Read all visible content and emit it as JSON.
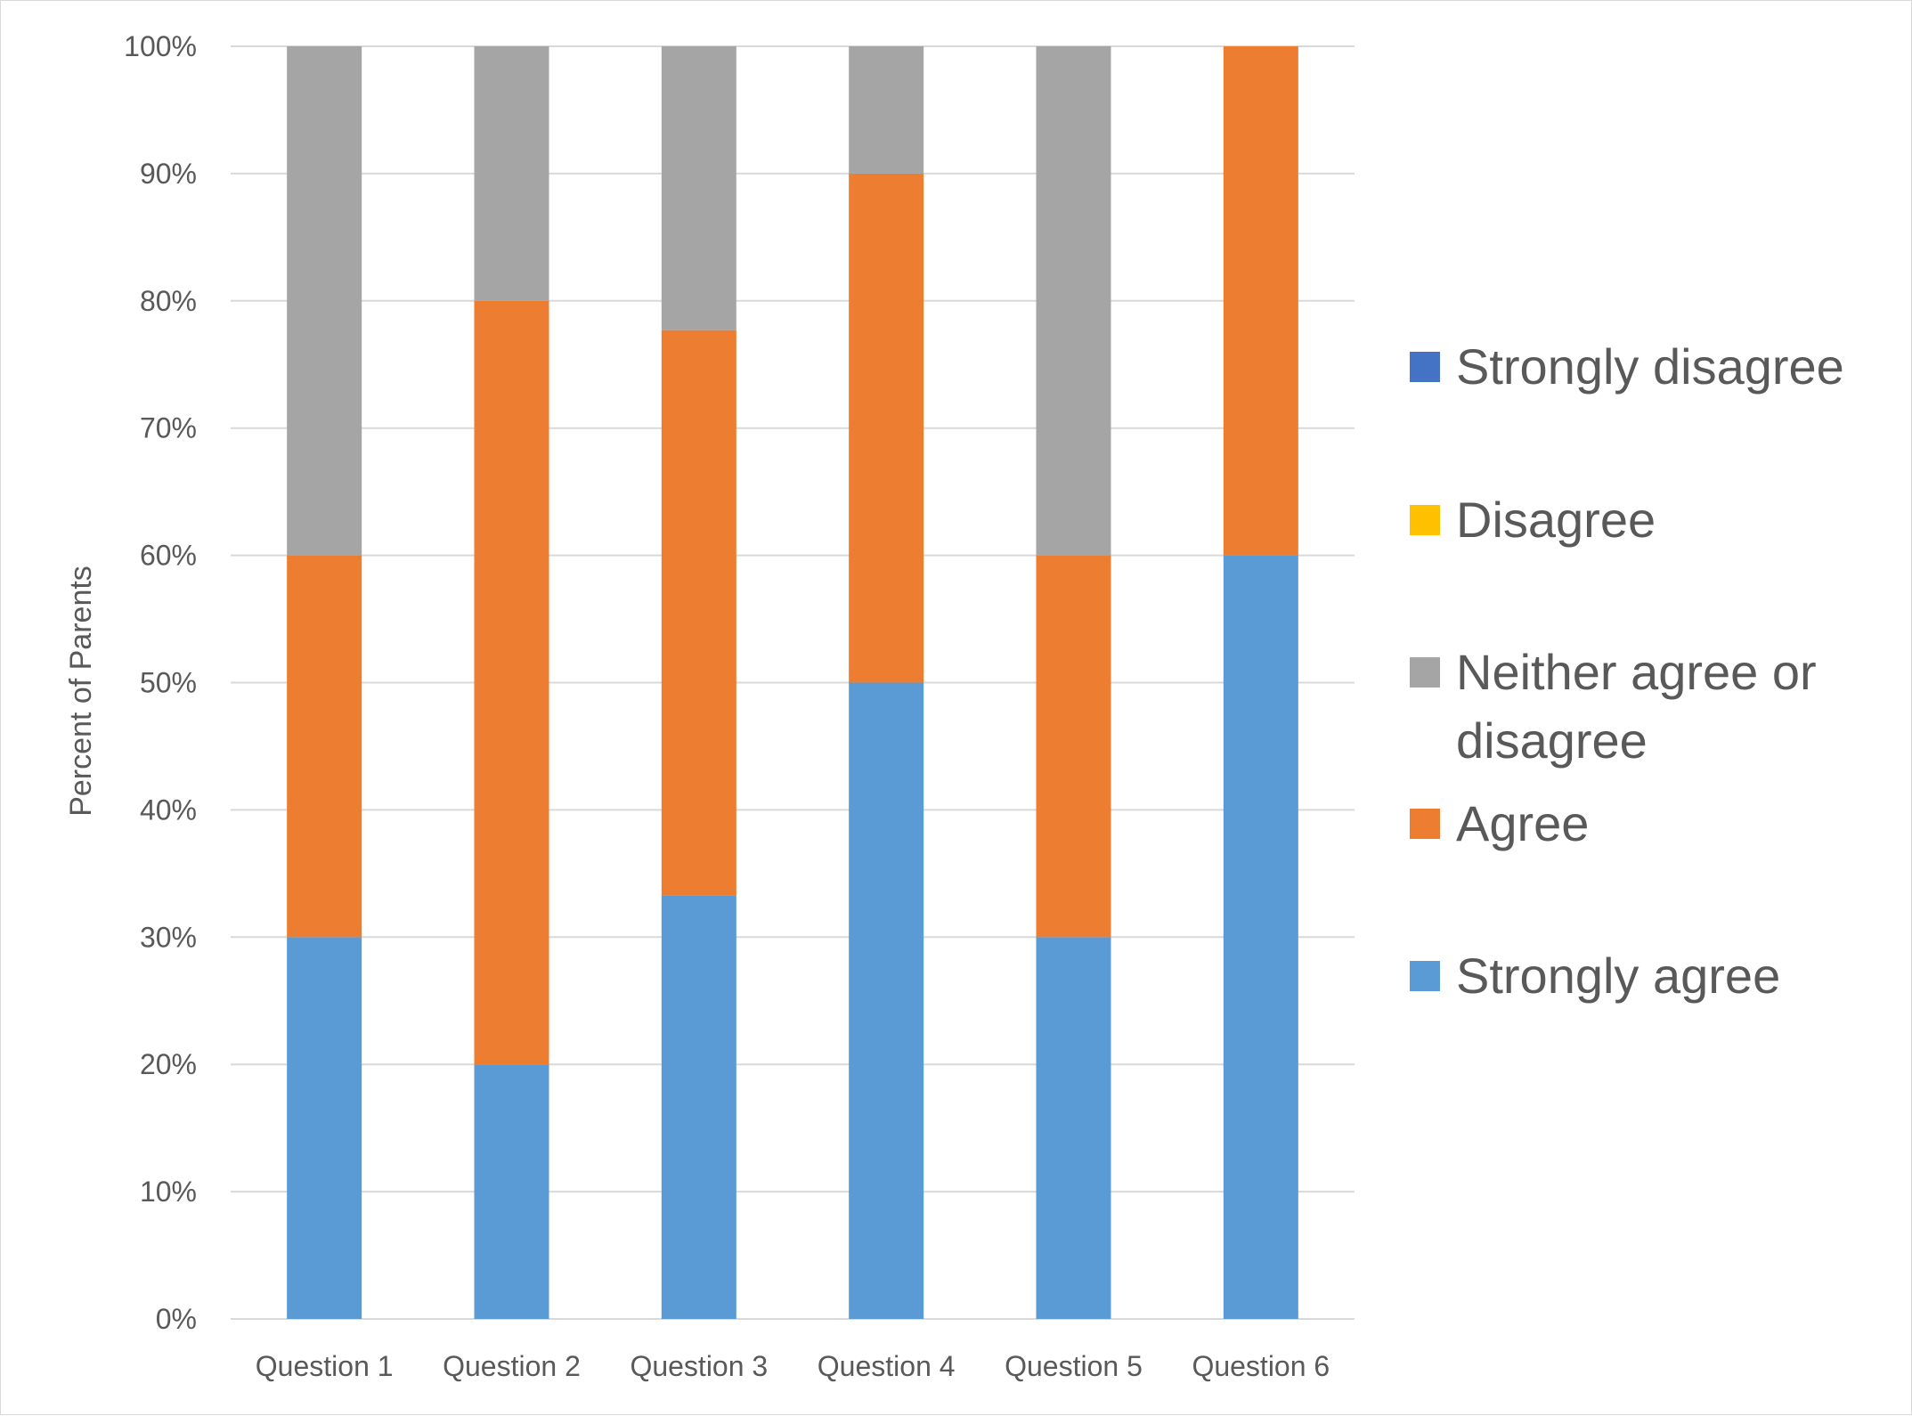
{
  "chart_data": {
    "type": "bar",
    "stacked": true,
    "title": "",
    "xlabel": "",
    "ylabel": "Percent of Parents",
    "ylim": [
      0,
      100
    ],
    "y_ticks": [
      0,
      10,
      20,
      30,
      40,
      50,
      60,
      70,
      80,
      90,
      100
    ],
    "y_tick_labels": [
      "0%",
      "10%",
      "20%",
      "30%",
      "40%",
      "50%",
      "60%",
      "70%",
      "80%",
      "90%",
      "100%"
    ],
    "grid": true,
    "legend_position": "right",
    "categories": [
      "Question 1",
      "Question 2",
      "Question 3",
      "Question 4",
      "Question 5",
      "Question 6"
    ],
    "series": [
      {
        "name": "Strongly agree",
        "color": "#5b9bd5",
        "values": [
          30,
          20,
          33.3,
          50,
          30,
          60
        ]
      },
      {
        "name": "Agree",
        "color": "#ed7d31",
        "values": [
          30,
          60,
          44.4,
          40,
          30,
          40
        ]
      },
      {
        "name": "Neither agree or disagree",
        "color": "#a5a5a5",
        "values": [
          40,
          20,
          22.3,
          10,
          40,
          0
        ]
      },
      {
        "name": "Disagree",
        "color": "#ffc000",
        "values": [
          0,
          0,
          0,
          0,
          0,
          0
        ]
      },
      {
        "name": "Strongly disagree",
        "color": "#4472c4",
        "values": [
          0,
          0,
          0,
          0,
          0,
          0
        ]
      }
    ],
    "legend": [
      {
        "label_lines": [
          "Strongly disagree"
        ],
        "color": "#4472c4"
      },
      {
        "label_lines": [
          "Disagree"
        ],
        "color": "#ffc000"
      },
      {
        "label_lines": [
          "Neither agree or",
          "disagree"
        ],
        "color": "#a5a5a5"
      },
      {
        "label_lines": [
          "Agree"
        ],
        "color": "#ed7d31"
      },
      {
        "label_lines": [
          "Strongly agree"
        ],
        "color": "#5b9bd5"
      }
    ]
  }
}
